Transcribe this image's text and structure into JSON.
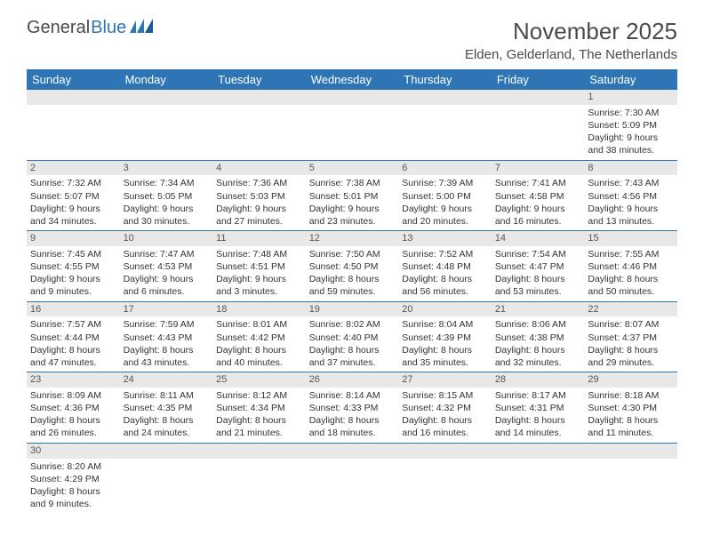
{
  "logo": {
    "text1": "General",
    "text2": "Blue"
  },
  "title": "November 2025",
  "location": "Elden, Gelderland, The Netherlands",
  "colors": {
    "header_bg": "#2e75b6",
    "header_text": "#ffffff",
    "daynum_bg": "#e8e8e8",
    "row_border": "#2e75b6",
    "page_bg": "#ffffff",
    "text": "#333333"
  },
  "daysOfWeek": [
    "Sunday",
    "Monday",
    "Tuesday",
    "Wednesday",
    "Thursday",
    "Friday",
    "Saturday"
  ],
  "weeks": [
    [
      {
        "day": "",
        "lines": [
          "",
          "",
          "",
          ""
        ]
      },
      {
        "day": "",
        "lines": [
          "",
          "",
          "",
          ""
        ]
      },
      {
        "day": "",
        "lines": [
          "",
          "",
          "",
          ""
        ]
      },
      {
        "day": "",
        "lines": [
          "",
          "",
          "",
          ""
        ]
      },
      {
        "day": "",
        "lines": [
          "",
          "",
          "",
          ""
        ]
      },
      {
        "day": "",
        "lines": [
          "",
          "",
          "",
          ""
        ]
      },
      {
        "day": "1",
        "lines": [
          "Sunrise: 7:30 AM",
          "Sunset: 5:09 PM",
          "Daylight: 9 hours",
          "and 38 minutes."
        ]
      }
    ],
    [
      {
        "day": "2",
        "lines": [
          "Sunrise: 7:32 AM",
          "Sunset: 5:07 PM",
          "Daylight: 9 hours",
          "and 34 minutes."
        ]
      },
      {
        "day": "3",
        "lines": [
          "Sunrise: 7:34 AM",
          "Sunset: 5:05 PM",
          "Daylight: 9 hours",
          "and 30 minutes."
        ]
      },
      {
        "day": "4",
        "lines": [
          "Sunrise: 7:36 AM",
          "Sunset: 5:03 PM",
          "Daylight: 9 hours",
          "and 27 minutes."
        ]
      },
      {
        "day": "5",
        "lines": [
          "Sunrise: 7:38 AM",
          "Sunset: 5:01 PM",
          "Daylight: 9 hours",
          "and 23 minutes."
        ]
      },
      {
        "day": "6",
        "lines": [
          "Sunrise: 7:39 AM",
          "Sunset: 5:00 PM",
          "Daylight: 9 hours",
          "and 20 minutes."
        ]
      },
      {
        "day": "7",
        "lines": [
          "Sunrise: 7:41 AM",
          "Sunset: 4:58 PM",
          "Daylight: 9 hours",
          "and 16 minutes."
        ]
      },
      {
        "day": "8",
        "lines": [
          "Sunrise: 7:43 AM",
          "Sunset: 4:56 PM",
          "Daylight: 9 hours",
          "and 13 minutes."
        ]
      }
    ],
    [
      {
        "day": "9",
        "lines": [
          "Sunrise: 7:45 AM",
          "Sunset: 4:55 PM",
          "Daylight: 9 hours",
          "and 9 minutes."
        ]
      },
      {
        "day": "10",
        "lines": [
          "Sunrise: 7:47 AM",
          "Sunset: 4:53 PM",
          "Daylight: 9 hours",
          "and 6 minutes."
        ]
      },
      {
        "day": "11",
        "lines": [
          "Sunrise: 7:48 AM",
          "Sunset: 4:51 PM",
          "Daylight: 9 hours",
          "and 3 minutes."
        ]
      },
      {
        "day": "12",
        "lines": [
          "Sunrise: 7:50 AM",
          "Sunset: 4:50 PM",
          "Daylight: 8 hours",
          "and 59 minutes."
        ]
      },
      {
        "day": "13",
        "lines": [
          "Sunrise: 7:52 AM",
          "Sunset: 4:48 PM",
          "Daylight: 8 hours",
          "and 56 minutes."
        ]
      },
      {
        "day": "14",
        "lines": [
          "Sunrise: 7:54 AM",
          "Sunset: 4:47 PM",
          "Daylight: 8 hours",
          "and 53 minutes."
        ]
      },
      {
        "day": "15",
        "lines": [
          "Sunrise: 7:55 AM",
          "Sunset: 4:46 PM",
          "Daylight: 8 hours",
          "and 50 minutes."
        ]
      }
    ],
    [
      {
        "day": "16",
        "lines": [
          "Sunrise: 7:57 AM",
          "Sunset: 4:44 PM",
          "Daylight: 8 hours",
          "and 47 minutes."
        ]
      },
      {
        "day": "17",
        "lines": [
          "Sunrise: 7:59 AM",
          "Sunset: 4:43 PM",
          "Daylight: 8 hours",
          "and 43 minutes."
        ]
      },
      {
        "day": "18",
        "lines": [
          "Sunrise: 8:01 AM",
          "Sunset: 4:42 PM",
          "Daylight: 8 hours",
          "and 40 minutes."
        ]
      },
      {
        "day": "19",
        "lines": [
          "Sunrise: 8:02 AM",
          "Sunset: 4:40 PM",
          "Daylight: 8 hours",
          "and 37 minutes."
        ]
      },
      {
        "day": "20",
        "lines": [
          "Sunrise: 8:04 AM",
          "Sunset: 4:39 PM",
          "Daylight: 8 hours",
          "and 35 minutes."
        ]
      },
      {
        "day": "21",
        "lines": [
          "Sunrise: 8:06 AM",
          "Sunset: 4:38 PM",
          "Daylight: 8 hours",
          "and 32 minutes."
        ]
      },
      {
        "day": "22",
        "lines": [
          "Sunrise: 8:07 AM",
          "Sunset: 4:37 PM",
          "Daylight: 8 hours",
          "and 29 minutes."
        ]
      }
    ],
    [
      {
        "day": "23",
        "lines": [
          "Sunrise: 8:09 AM",
          "Sunset: 4:36 PM",
          "Daylight: 8 hours",
          "and 26 minutes."
        ]
      },
      {
        "day": "24",
        "lines": [
          "Sunrise: 8:11 AM",
          "Sunset: 4:35 PM",
          "Daylight: 8 hours",
          "and 24 minutes."
        ]
      },
      {
        "day": "25",
        "lines": [
          "Sunrise: 8:12 AM",
          "Sunset: 4:34 PM",
          "Daylight: 8 hours",
          "and 21 minutes."
        ]
      },
      {
        "day": "26",
        "lines": [
          "Sunrise: 8:14 AM",
          "Sunset: 4:33 PM",
          "Daylight: 8 hours",
          "and 18 minutes."
        ]
      },
      {
        "day": "27",
        "lines": [
          "Sunrise: 8:15 AM",
          "Sunset: 4:32 PM",
          "Daylight: 8 hours",
          "and 16 minutes."
        ]
      },
      {
        "day": "28",
        "lines": [
          "Sunrise: 8:17 AM",
          "Sunset: 4:31 PM",
          "Daylight: 8 hours",
          "and 14 minutes."
        ]
      },
      {
        "day": "29",
        "lines": [
          "Sunrise: 8:18 AM",
          "Sunset: 4:30 PM",
          "Daylight: 8 hours",
          "and 11 minutes."
        ]
      }
    ],
    [
      {
        "day": "30",
        "lines": [
          "Sunrise: 8:20 AM",
          "Sunset: 4:29 PM",
          "Daylight: 8 hours",
          "and 9 minutes."
        ]
      },
      {
        "day": "",
        "lines": [
          "",
          "",
          "",
          ""
        ]
      },
      {
        "day": "",
        "lines": [
          "",
          "",
          "",
          ""
        ]
      },
      {
        "day": "",
        "lines": [
          "",
          "",
          "",
          ""
        ]
      },
      {
        "day": "",
        "lines": [
          "",
          "",
          "",
          ""
        ]
      },
      {
        "day": "",
        "lines": [
          "",
          "",
          "",
          ""
        ]
      },
      {
        "day": "",
        "lines": [
          "",
          "",
          "",
          ""
        ]
      }
    ]
  ]
}
